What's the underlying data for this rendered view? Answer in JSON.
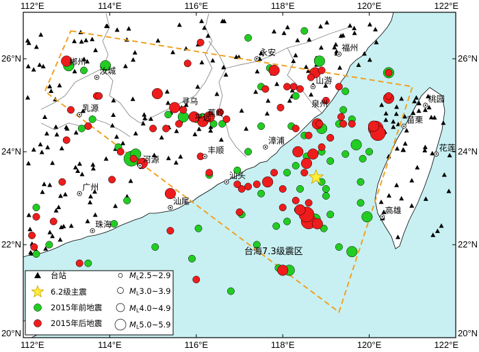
{
  "axes": {
    "lon_ticks_top": [
      "112°E",
      "114°E",
      "116°E",
      "118°E",
      "120°E",
      "122°E"
    ],
    "lon_ticks_bottom": [
      "112°E",
      "114°E",
      "116°E",
      "118°E",
      "120°E",
      "122°E"
    ],
    "lat_ticks_left": [
      "20°N",
      "22°N",
      "24°N",
      "26°N"
    ],
    "lat_ticks_right": [
      "20°N",
      "22°N",
      "24°N",
      "26°N"
    ],
    "lon_range": [
      112,
      122
    ],
    "lat_range": [
      20,
      27
    ]
  },
  "zone_label": "台海7.3级震区",
  "cities": [
    {
      "name": "郴州",
      "lon": 113.0,
      "lat": 25.8,
      "symbol": false
    },
    {
      "name": "永安",
      "lon": 117.4,
      "lat": 26.0,
      "symbol": true
    },
    {
      "name": "福州",
      "lon": 119.3,
      "lat": 26.1,
      "symbol": true
    },
    {
      "name": "汝城",
      "lon": 113.7,
      "lat": 25.6,
      "symbol": true
    },
    {
      "name": "山游",
      "lon": 118.7,
      "lat": 25.4,
      "symbol": true
    },
    {
      "name": "寻乌",
      "lon": 115.6,
      "lat": 24.95,
      "symbol": false
    },
    {
      "name": "泉州",
      "lon": 118.6,
      "lat": 24.9,
      "symbol": false
    },
    {
      "name": "蕉岭",
      "lon": 116.2,
      "lat": 24.7,
      "symbol": false
    },
    {
      "name": "平远",
      "lon": 115.9,
      "lat": 24.6,
      "symbol": false
    },
    {
      "name": "桃园",
      "lon": 121.3,
      "lat": 25.0,
      "symbol": true
    },
    {
      "name": "乳源",
      "lon": 113.3,
      "lat": 24.8,
      "symbol": true
    },
    {
      "name": "漳浦",
      "lon": 117.6,
      "lat": 24.1,
      "symbol": true
    },
    {
      "name": "苗栗",
      "lon": 120.8,
      "lat": 24.55,
      "symbol": true
    },
    {
      "name": "丰顺",
      "lon": 116.2,
      "lat": 23.9,
      "symbol": true
    },
    {
      "name": "花莲",
      "lon": 121.55,
      "lat": 23.95,
      "symbol": true
    },
    {
      "name": "河源",
      "lon": 114.7,
      "lat": 23.7,
      "symbol": true
    },
    {
      "name": "汕头",
      "lon": 116.7,
      "lat": 23.35,
      "symbol": true
    },
    {
      "name": "广州",
      "lon": 113.3,
      "lat": 23.1,
      "symbol": true
    },
    {
      "name": "汕尾",
      "lon": 115.4,
      "lat": 22.8,
      "symbol": true
    },
    {
      "name": "珠海",
      "lon": 113.6,
      "lat": 22.3,
      "symbol": true
    },
    {
      "name": "高雄",
      "lon": 120.3,
      "lat": 22.6,
      "symbol": true
    }
  ],
  "mainshock": {
    "magnitude": "6.2",
    "lon": 118.77,
    "lat": 23.45
  },
  "events_before_2015": [
    {
      "lon": 113.05,
      "lat": 25.85,
      "mag": 4.8
    },
    {
      "lon": 113.9,
      "lat": 25.85,
      "mag": 4.2
    },
    {
      "lon": 113.4,
      "lat": 25.75,
      "mag": 3.4
    },
    {
      "lon": 113.35,
      "lat": 24.5,
      "mag": 3.2
    },
    {
      "lon": 113.6,
      "lat": 24.7,
      "mag": 3.0
    },
    {
      "lon": 114.5,
      "lat": 23.85,
      "mag": 5.0
    },
    {
      "lon": 114.6,
      "lat": 23.95,
      "mag": 4.2
    },
    {
      "lon": 114.2,
      "lat": 24.1,
      "mag": 3.0
    },
    {
      "lon": 115.35,
      "lat": 24.8,
      "mag": 3.2
    },
    {
      "lon": 115.7,
      "lat": 24.75,
      "mag": 4.6
    },
    {
      "lon": 116.0,
      "lat": 24.7,
      "mag": 3.6
    },
    {
      "lon": 116.15,
      "lat": 24.75,
      "mag": 3.4
    },
    {
      "lon": 116.4,
      "lat": 24.6,
      "mag": 3.0
    },
    {
      "lon": 116.6,
      "lat": 24.6,
      "mag": 3.1
    },
    {
      "lon": 116.3,
      "lat": 23.5,
      "mag": 3.0
    },
    {
      "lon": 117.5,
      "lat": 24.55,
      "mag": 3.2
    },
    {
      "lon": 118.2,
      "lat": 24.55,
      "mag": 3.8
    },
    {
      "lon": 118.5,
      "lat": 24.35,
      "mag": 3.8
    },
    {
      "lon": 118.9,
      "lat": 24.5,
      "mag": 4.3
    },
    {
      "lon": 119.1,
      "lat": 24.3,
      "mag": 3.7
    },
    {
      "lon": 119.3,
      "lat": 24.6,
      "mag": 3.4
    },
    {
      "lon": 119.4,
      "lat": 24.9,
      "mag": 3.5
    },
    {
      "lon": 119.6,
      "lat": 24.7,
      "mag": 3.2
    },
    {
      "lon": 119.7,
      "lat": 24.15,
      "mag": 4.9
    },
    {
      "lon": 119.45,
      "lat": 23.95,
      "mag": 3.9
    },
    {
      "lon": 119.85,
      "lat": 23.85,
      "mag": 3.3
    },
    {
      "lon": 119.1,
      "lat": 23.8,
      "mag": 3.3
    },
    {
      "lon": 118.55,
      "lat": 23.9,
      "mag": 3.5
    },
    {
      "lon": 118.9,
      "lat": 24.0,
      "mag": 3.4
    },
    {
      "lon": 118.1,
      "lat": 23.55,
      "mag": 3.0
    },
    {
      "lon": 118.4,
      "lat": 23.2,
      "mag": 3.0
    },
    {
      "lon": 118.9,
      "lat": 23.35,
      "mag": 3.5
    },
    {
      "lon": 119.0,
      "lat": 23.2,
      "mag": 3.4
    },
    {
      "lon": 119.0,
      "lat": 23.05,
      "mag": 3.0
    },
    {
      "lon": 118.35,
      "lat": 22.75,
      "mag": 3.2
    },
    {
      "lon": 118.75,
      "lat": 22.55,
      "mag": 4.0
    },
    {
      "lon": 119.1,
      "lat": 22.65,
      "mag": 3.3
    },
    {
      "lon": 118.95,
      "lat": 22.35,
      "mag": 3.5
    },
    {
      "lon": 118.1,
      "lat": 22.5,
      "mag": 3.1
    },
    {
      "lon": 117.85,
      "lat": 22.4,
      "mag": 3.0
    },
    {
      "lon": 117.4,
      "lat": 22.0,
      "mag": 3.0
    },
    {
      "lon": 119.3,
      "lat": 21.95,
      "mag": 3.7
    },
    {
      "lon": 119.6,
      "lat": 21.85,
      "mag": 4.0
    },
    {
      "lon": 119.95,
      "lat": 22.6,
      "mag": 4.0
    },
    {
      "lon": 119.8,
      "lat": 22.9,
      "mag": 3.0
    },
    {
      "lon": 118.15,
      "lat": 21.45,
      "mag": 4.4
    },
    {
      "lon": 117.9,
      "lat": 21.5,
      "mag": 3.0
    },
    {
      "lon": 120.3,
      "lat": 24.4,
      "mag": 3.0
    },
    {
      "lon": 120.0,
      "lat": 24.0,
      "mag": 3.0
    },
    {
      "lon": 120.45,
      "lat": 25.7,
      "mag": 4.0
    },
    {
      "lon": 118.85,
      "lat": 25.95,
      "mag": 4.0
    },
    {
      "lon": 118.3,
      "lat": 25.2,
      "mag": 3.4
    },
    {
      "lon": 117.5,
      "lat": 25.4,
      "mag": 3.0
    },
    {
      "lon": 117.7,
      "lat": 25.8,
      "mag": 3.2
    },
    {
      "lon": 118.5,
      "lat": 26.6,
      "mag": 3.0
    },
    {
      "lon": 117.2,
      "lat": 26.45,
      "mag": 3.0
    },
    {
      "lon": 119.45,
      "lat": 25.3,
      "mag": 3.1
    },
    {
      "lon": 117.2,
      "lat": 24.0,
      "mag": 3.0
    },
    {
      "lon": 116.95,
      "lat": 23.6,
      "mag": 3.0
    },
    {
      "lon": 117.05,
      "lat": 22.65,
      "mag": 3.0
    },
    {
      "lon": 116.05,
      "lat": 22.35,
      "mag": 3.0
    },
    {
      "lon": 114.1,
      "lat": 22.45,
      "mag": 3.0
    },
    {
      "lon": 112.6,
      "lat": 22.0,
      "mag": 3.0
    },
    {
      "lon": 112.3,
      "lat": 21.8,
      "mag": 3.0
    },
    {
      "lon": 113.5,
      "lat": 21.6,
      "mag": 3.0
    },
    {
      "lon": 115.05,
      "lat": 21.95,
      "mag": 3.0
    },
    {
      "lon": 115.9,
      "lat": 21.7,
      "mag": 3.0
    },
    {
      "lon": 116.8,
      "lat": 21.0,
      "mag": 3.0
    },
    {
      "lon": 114.4,
      "lat": 22.95,
      "mag": 3.0
    },
    {
      "lon": 112.3,
      "lat": 22.8,
      "mag": 3.0
    },
    {
      "lon": 118.3,
      "lat": 23.7,
      "mag": 3.0
    },
    {
      "lon": 117.5,
      "lat": 23.1,
      "mag": 3.0
    },
    {
      "lon": 119.8,
      "lat": 23.35,
      "mag": 3.0
    }
  ],
  "events_after_2015": [
    {
      "lon": 113.0,
      "lat": 25.95,
      "mag": 4.8
    },
    {
      "lon": 113.7,
      "lat": 25.2,
      "mag": 3.9
    },
    {
      "lon": 113.1,
      "lat": 24.9,
      "mag": 3.4
    },
    {
      "lon": 113.5,
      "lat": 24.55,
      "mag": 3.0
    },
    {
      "lon": 114.75,
      "lat": 23.75,
      "mag": 4.2
    },
    {
      "lon": 114.55,
      "lat": 23.85,
      "mag": 3.3
    },
    {
      "lon": 115.4,
      "lat": 23.1,
      "mag": 4.8
    },
    {
      "lon": 115.0,
      "lat": 24.5,
      "mag": 3.0
    },
    {
      "lon": 115.5,
      "lat": 24.95,
      "mag": 4.0
    },
    {
      "lon": 115.7,
      "lat": 24.9,
      "mag": 3.5
    },
    {
      "lon": 115.95,
      "lat": 24.75,
      "mag": 4.1
    },
    {
      "lon": 116.15,
      "lat": 24.65,
      "mag": 4.6
    },
    {
      "lon": 116.3,
      "lat": 24.75,
      "mag": 4.0
    },
    {
      "lon": 115.6,
      "lat": 24.6,
      "mag": 3.0
    },
    {
      "lon": 116.7,
      "lat": 24.7,
      "mag": 3.0
    },
    {
      "lon": 115.3,
      "lat": 24.5,
      "mag": 3.8
    },
    {
      "lon": 115.1,
      "lat": 25.25,
      "mag": 4.0
    },
    {
      "lon": 115.8,
      "lat": 25.9,
      "mag": 3.0
    },
    {
      "lon": 116.1,
      "lat": 26.35,
      "mag": 3.0
    },
    {
      "lon": 118.75,
      "lat": 25.7,
      "mag": 4.0
    },
    {
      "lon": 118.25,
      "lat": 25.4,
      "mag": 3.3
    },
    {
      "lon": 118.4,
      "lat": 25.35,
      "mag": 3.8
    },
    {
      "lon": 118.1,
      "lat": 25.4,
      "mag": 3.2
    },
    {
      "lon": 119.3,
      "lat": 25.4,
      "mag": 3.9
    },
    {
      "lon": 119.0,
      "lat": 25.1,
      "mag": 3.0
    },
    {
      "lon": 117.8,
      "lat": 25.75,
      "mag": 4.0
    },
    {
      "lon": 117.6,
      "lat": 25.35,
      "mag": 3.0
    },
    {
      "lon": 118.8,
      "lat": 24.6,
      "mag": 4.0
    },
    {
      "lon": 118.3,
      "lat": 24.5,
      "mag": 3.5
    },
    {
      "lon": 118.6,
      "lat": 24.35,
      "mag": 3.5
    },
    {
      "lon": 118.9,
      "lat": 24.1,
      "mag": 3.4
    },
    {
      "lon": 118.35,
      "lat": 24.0,
      "mag": 4.6
    },
    {
      "lon": 118.7,
      "lat": 23.95,
      "mag": 4.2
    },
    {
      "lon": 118.55,
      "lat": 23.75,
      "mag": 4.0
    },
    {
      "lon": 118.5,
      "lat": 23.55,
      "mag": 3.3
    },
    {
      "lon": 118.85,
      "lat": 24.6,
      "mag": 3.0
    },
    {
      "lon": 119.4,
      "lat": 24.6,
      "mag": 3.8
    },
    {
      "lon": 119.6,
      "lat": 24.6,
      "mag": 3.0
    },
    {
      "lon": 120.15,
      "lat": 24.5,
      "mag": 5.3
    },
    {
      "lon": 120.2,
      "lat": 24.4,
      "mag": 5.1
    },
    {
      "lon": 120.1,
      "lat": 24.55,
      "mag": 4.6
    },
    {
      "lon": 120.45,
      "lat": 25.15,
      "mag": 4.0
    },
    {
      "lon": 120.45,
      "lat": 25.7,
      "mag": 3.4
    },
    {
      "lon": 118.65,
      "lat": 25.6,
      "mag": 3.5
    },
    {
      "lon": 118.9,
      "lat": 25.75,
      "mag": 3.0
    },
    {
      "lon": 117.65,
      "lat": 23.35,
      "mag": 4.0
    },
    {
      "lon": 117.4,
      "lat": 23.3,
      "mag": 3.7
    },
    {
      "lon": 117.2,
      "lat": 23.25,
      "mag": 3.5
    },
    {
      "lon": 117.05,
      "lat": 23.2,
      "mag": 3.6
    },
    {
      "lon": 116.95,
      "lat": 23.3,
      "mag": 3.0
    },
    {
      "lon": 117.8,
      "lat": 23.55,
      "mag": 3.3
    },
    {
      "lon": 118.0,
      "lat": 22.8,
      "mag": 3.0
    },
    {
      "lon": 118.55,
      "lat": 22.65,
      "mag": 5.0
    },
    {
      "lon": 118.6,
      "lat": 22.5,
      "mag": 5.3
    },
    {
      "lon": 118.8,
      "lat": 22.45,
      "mag": 4.4
    },
    {
      "lon": 118.4,
      "lat": 22.75,
      "mag": 4.1
    },
    {
      "lon": 118.3,
      "lat": 22.95,
      "mag": 3.4
    },
    {
      "lon": 118.0,
      "lat": 23.2,
      "mag": 3.2
    },
    {
      "lon": 118.6,
      "lat": 22.9,
      "mag": 3.0
    },
    {
      "lon": 118.0,
      "lat": 21.45,
      "mag": 4.0
    },
    {
      "lon": 116.0,
      "lat": 21.25,
      "mag": 3.0
    },
    {
      "lon": 116.3,
      "lat": 23.55,
      "mag": 3.5
    },
    {
      "lon": 116.1,
      "lat": 23.9,
      "mag": 3.0
    },
    {
      "lon": 114.05,
      "lat": 23.4,
      "mag": 3.0
    },
    {
      "lon": 112.9,
      "lat": 23.35,
      "mag": 3.2
    },
    {
      "lon": 112.7,
      "lat": 22.5,
      "mag": 3.0
    },
    {
      "lon": 112.2,
      "lat": 22.2,
      "mag": 3.0
    },
    {
      "lon": 112.25,
      "lat": 21.95,
      "mag": 3.0
    },
    {
      "lon": 113.3,
      "lat": 21.6,
      "mag": 3.0
    },
    {
      "lon": 115.4,
      "lat": 22.3,
      "mag": 3.0
    },
    {
      "lon": 117.0,
      "lat": 22.7,
      "mag": 3.0
    },
    {
      "lon": 113.0,
      "lat": 24.25,
      "mag": 3.0
    },
    {
      "lon": 114.25,
      "lat": 24.0,
      "mag": 3.0
    },
    {
      "lon": 117.95,
      "lat": 24.95,
      "mag": 3.0
    },
    {
      "lon": 119.1,
      "lat": 24.3,
      "mag": 3.3
    },
    {
      "lon": 119.35,
      "lat": 24.75,
      "mag": 3.2
    },
    {
      "lon": 116.55,
      "lat": 24.85,
      "mag": 3.0
    },
    {
      "lon": 113.75,
      "lat": 25.2,
      "mag": 3.0
    },
    {
      "lon": 112.3,
      "lat": 22.6,
      "mag": 3.0
    },
    {
      "lon": 120.45,
      "lat": 25.2,
      "mag": 3.8
    }
  ],
  "legend": {
    "station": "台站",
    "mainshock": "6.2级主震",
    "before": "2015年前地震",
    "after": "2015年后地震",
    "mag_prefix": "M",
    "mag_sub": "L",
    "mag_classes": [
      "2.5~2.9",
      "3.0~3.9",
      "4.0~4.9",
      "5.0~5.9"
    ]
  },
  "colors": {
    "sea": "#c8f0f2",
    "land": "#ffffff",
    "before": "#22cc22",
    "after": "#ee1c1c",
    "mainshock": "#ffee33",
    "zone": "#f0a020",
    "station": "#000000"
  }
}
